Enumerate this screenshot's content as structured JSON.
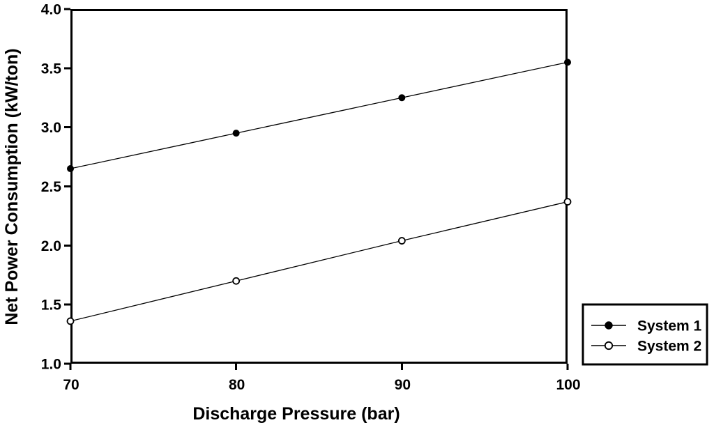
{
  "figure": {
    "background": "#ffffff",
    "line_color": "#000000"
  },
  "chart_data": {
    "type": "line",
    "title": "",
    "xlabel": "Discharge Pressure (bar)",
    "ylabel": "Net Power Consumption (kW/ton)",
    "x": [
      70,
      80,
      90,
      100
    ],
    "series": [
      {
        "name": "System 1",
        "marker": "filled-circle",
        "color": "#000000",
        "values": [
          2.65,
          2.95,
          3.25,
          3.55
        ]
      },
      {
        "name": "System 2",
        "marker": "open-circle",
        "color": "#000000",
        "values": [
          1.36,
          1.7,
          2.04,
          2.37
        ]
      }
    ],
    "xlim": [
      70,
      100
    ],
    "ylim": [
      1.0,
      4.0
    ],
    "x_ticks": [
      70,
      80,
      90,
      100
    ],
    "x_tick_labels": [
      "70",
      "80",
      "90",
      "100"
    ],
    "y_ticks": [
      1.0,
      1.5,
      2.0,
      2.5,
      3.0,
      3.5,
      4.0
    ],
    "y_tick_labels": [
      "1.0",
      "1.5",
      "2.0",
      "2.5",
      "3.0",
      "3.5",
      "4.0"
    ],
    "grid": false,
    "legend": {
      "position": "bottom-right",
      "entries": [
        "System 1",
        "System 2"
      ]
    }
  }
}
